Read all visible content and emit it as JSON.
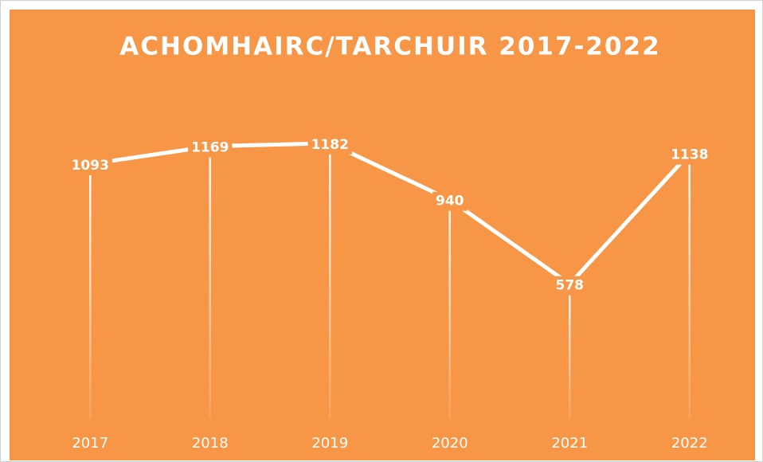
{
  "chart_data": {
    "type": "line",
    "title": "ACHOMHAIRC/TARCHUIR 2017-2022",
    "categories": [
      "2017",
      "2018",
      "2019",
      "2020",
      "2021",
      "2022"
    ],
    "values": [
      1093,
      1169,
      1182,
      940,
      578,
      1138
    ],
    "color": "#ffffff",
    "background": "#f79646",
    "ylim": [
      0,
      1400
    ]
  }
}
